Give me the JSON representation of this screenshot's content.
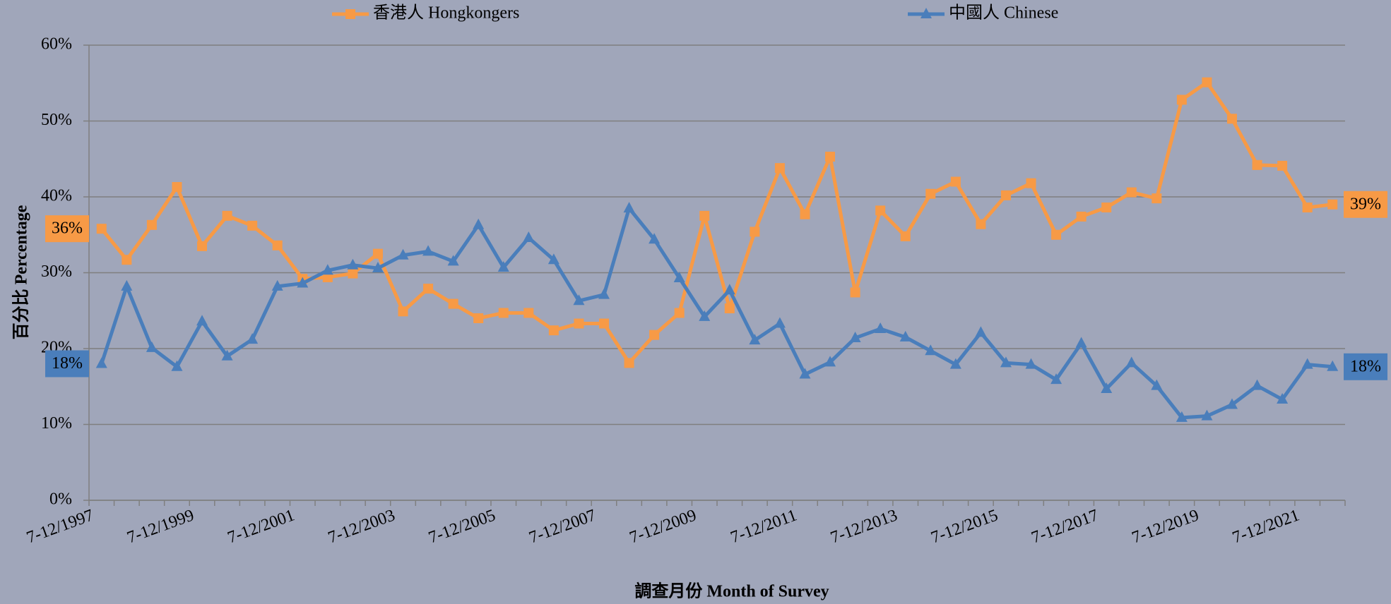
{
  "chart_data": {
    "type": "line",
    "x_label": "調查月份 Month of Survey",
    "y_label": "百分比 Percentage",
    "legend": "top",
    "grid": true,
    "categories": [
      "7-12/1997",
      null,
      null,
      null,
      "7-12/1999",
      null,
      null,
      null,
      "7-12/2001",
      null,
      null,
      null,
      "7-12/2003",
      null,
      null,
      null,
      "7-12/2005",
      null,
      null,
      null,
      "7-12/2007",
      null,
      null,
      null,
      "7-12/2009",
      null,
      null,
      null,
      "7-12/2011",
      null,
      null,
      null,
      "7-12/2013",
      null,
      null,
      null,
      "7-12/2015",
      null,
      null,
      null,
      "7-12/2017",
      null,
      null,
      null,
      "7-12/2019",
      null,
      null,
      null,
      "7-12/2021",
      null
    ],
    "series": [
      {
        "name": "香港人 Hongkongers",
        "color": "#f79a46",
        "marker": "square",
        "values": [
          35.8,
          31.7,
          36.3,
          41.3,
          33.5,
          37.5,
          36.2,
          33.6,
          29.2,
          29.4,
          29.9,
          32.5,
          24.9,
          27.9,
          25.9,
          24.0,
          24.7,
          24.7,
          22.4,
          23.3,
          23.3,
          18.1,
          21.8,
          24.7,
          37.5,
          25.3,
          35.4,
          43.8,
          37.7,
          45.3,
          27.4,
          38.2,
          34.8,
          40.4,
          42.0,
          36.4,
          40.2,
          41.8,
          35.0,
          37.4,
          38.6,
          40.6,
          39.8,
          52.8,
          55.1,
          50.3,
          44.2,
          44.1,
          38.6,
          39.0
        ],
        "value_labels": [
          "36%",
          null,
          null,
          null,
          null,
          null,
          null,
          null,
          null,
          null,
          null,
          null,
          null,
          null,
          null,
          null,
          null,
          null,
          null,
          null,
          null,
          null,
          null,
          null,
          null,
          null,
          null,
          null,
          null,
          null,
          null,
          null,
          null,
          null,
          null,
          null,
          null,
          null,
          null,
          null,
          null,
          null,
          null,
          null,
          null,
          null,
          null,
          null,
          null,
          "39%"
        ]
      },
      {
        "name": "中國人 Chinese",
        "color": "#4a7ebb",
        "marker": "triangle",
        "values": [
          18.0,
          28.2,
          20.1,
          17.6,
          23.6,
          19.0,
          21.2,
          28.2,
          28.6,
          30.3,
          31.0,
          30.6,
          32.3,
          32.8,
          31.5,
          36.3,
          30.7,
          34.6,
          31.7,
          26.3,
          27.1,
          38.5,
          34.4,
          29.3,
          24.2,
          27.7,
          21.1,
          23.3,
          16.6,
          18.2,
          21.4,
          22.6,
          21.5,
          19.7,
          17.9,
          22.1,
          18.1,
          17.9,
          15.9,
          20.7,
          14.7,
          18.1,
          15.1,
          10.9,
          11.1,
          12.6,
          15.1,
          13.3,
          17.9,
          17.6
        ],
        "value_labels": [
          "18%",
          null,
          null,
          null,
          null,
          null,
          null,
          null,
          null,
          null,
          null,
          null,
          null,
          null,
          null,
          null,
          null,
          null,
          null,
          null,
          null,
          null,
          null,
          null,
          null,
          null,
          null,
          null,
          null,
          null,
          null,
          null,
          null,
          null,
          null,
          null,
          null,
          null,
          null,
          null,
          null,
          null,
          null,
          null,
          null,
          null,
          null,
          null,
          null,
          "18%"
        ]
      }
    ],
    "ylim": [
      0,
      60
    ],
    "yticks": [
      {
        "value": 0,
        "label": "0%"
      },
      {
        "value": 10,
        "label": "10%"
      },
      {
        "value": 20,
        "label": "20%"
      },
      {
        "value": 30,
        "label": "30%"
      },
      {
        "value": 40,
        "label": "40%"
      },
      {
        "value": 50,
        "label": "50%"
      },
      {
        "value": 60,
        "label": "60%"
      }
    ]
  }
}
